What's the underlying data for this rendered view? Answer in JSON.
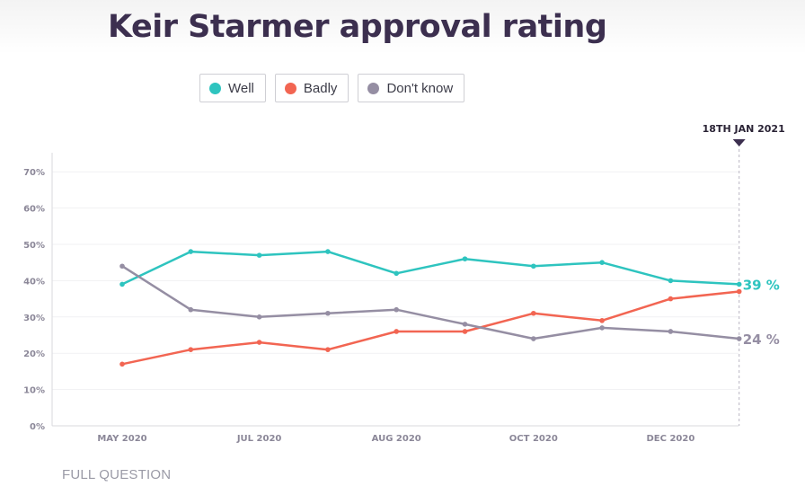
{
  "title": "Keir Starmer approval rating",
  "legend": [
    {
      "label": "Well",
      "color": "#2ec4bf"
    },
    {
      "label": "Badly",
      "color": "#f26552"
    },
    {
      "label": "Don't know",
      "color": "#958ea3"
    }
  ],
  "date_marker": "18TH JAN 2021",
  "full_question": "FULL QUESTION",
  "chart_data": {
    "type": "line",
    "title": "Keir Starmer approval rating",
    "x": [
      "2020-05",
      "2020-06",
      "2020-07",
      "2020-08",
      "2020-08b",
      "2020-09",
      "2020-10",
      "2020-11",
      "2020-12",
      "2021-01-18"
    ],
    "tick_labels": [
      "MAY 2020",
      "JUL 2020",
      "AUG 2020",
      "OCT 2020",
      "DEC 2020"
    ],
    "y_ticks": [
      "0%",
      "10%",
      "20%",
      "30%",
      "40%",
      "50%",
      "60%",
      "70%"
    ],
    "ylim": [
      0,
      75
    ],
    "series": [
      {
        "name": "Well",
        "color": "#2ec4bf",
        "values": [
          39,
          48,
          47,
          48,
          42,
          46,
          44,
          45,
          40,
          39
        ],
        "end_label": "39 %"
      },
      {
        "name": "Badly",
        "color": "#f26552",
        "values": [
          17,
          21,
          23,
          21,
          26,
          26,
          31,
          29,
          35,
          37
        ],
        "end_label": ""
      },
      {
        "name": "Don't know",
        "color": "#958ea3",
        "values": [
          44,
          32,
          30,
          31,
          32,
          28,
          24,
          27,
          26,
          24
        ],
        "end_label": "24 %"
      }
    ],
    "xlabel": "",
    "ylabel": ""
  }
}
